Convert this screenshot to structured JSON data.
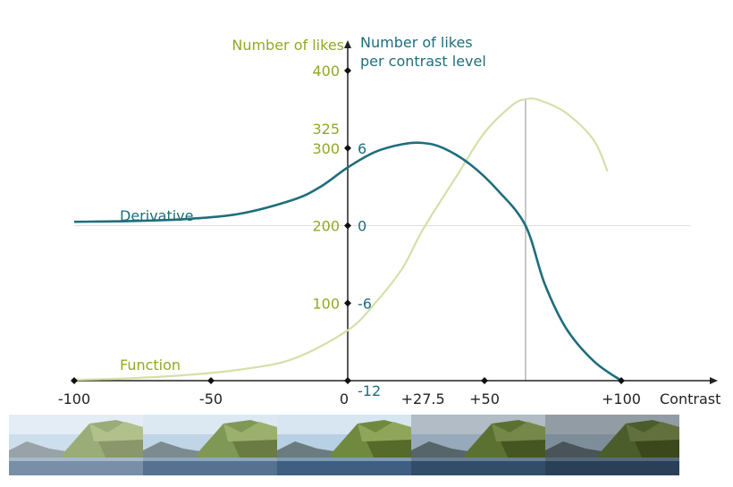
{
  "chart_data": {
    "type": "line",
    "title": "",
    "xlabel": "Contrast",
    "x_ticks": [
      "-100",
      "-50",
      "0",
      "+27.5",
      "+50",
      "+100"
    ],
    "x_tick_values": [
      -100,
      -50,
      0,
      27.5,
      50,
      100
    ],
    "xlim": [
      -100,
      100
    ],
    "left_axis": {
      "label": "Number of likes",
      "ticks": [
        "100",
        "200",
        "300",
        "325",
        "400"
      ],
      "tick_values": [
        100,
        200,
        300,
        325,
        400
      ],
      "ylim": [
        0,
        400
      ],
      "color": "#8faa24"
    },
    "right_axis": {
      "label_line1": "Number of likes",
      "label_line2": "per contrast level",
      "ticks": [
        "-12",
        "-6",
        "0",
        "6"
      ],
      "tick_values": [
        -12,
        -6,
        0,
        6
      ],
      "ylim": [
        -12,
        12
      ],
      "color": "#1f6e7c"
    },
    "series": [
      {
        "name": "Function",
        "axis": "left",
        "color": "#d4e0a8",
        "x": [
          -100,
          -80,
          -60,
          -40,
          -20,
          0,
          10,
          20,
          27.5,
          40,
          50,
          60,
          65,
          70,
          80,
          90,
          95
        ],
        "y": [
          1,
          3,
          7,
          14,
          28,
          65,
          100,
          145,
          195,
          265,
          320,
          355,
          363,
          362,
          345,
          310,
          270
        ]
      },
      {
        "name": "Derivative",
        "axis": "right",
        "color": "#1f6e7c",
        "x": [
          -100,
          -80,
          -60,
          -40,
          -20,
          -10,
          0,
          10,
          20,
          27.5,
          35,
          45,
          55,
          65,
          72,
          80,
          90,
          100
        ],
        "y": [
          0.3,
          0.35,
          0.5,
          0.9,
          2.0,
          3.0,
          4.5,
          5.7,
          6.3,
          6.4,
          6.0,
          4.7,
          2.7,
          0,
          -4.5,
          -8.0,
          -10.5,
          -12
        ]
      }
    ],
    "peak_marker_x": 65,
    "zero_line_y": 200,
    "grid": false,
    "legend": "inline labels"
  }
}
